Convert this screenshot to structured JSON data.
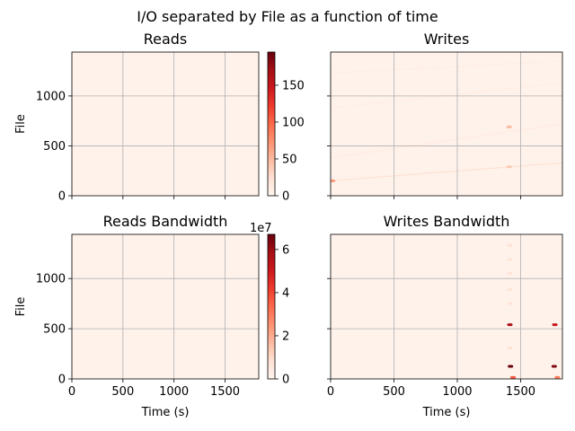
{
  "figure": {
    "title": "I/O separated by File as a function of time"
  },
  "chart_data": [
    {
      "type": "heatmap",
      "title": "Reads",
      "xlabel": "",
      "ylabel": "File",
      "xlim": [
        0,
        1830
      ],
      "ylim": [
        0,
        1440
      ],
      "xticks": [
        0,
        500,
        1000,
        1500
      ],
      "yticks": [
        0,
        500,
        1000
      ],
      "show_xticklabels": false,
      "show_yticklabels": true,
      "grid": true,
      "colormap": "Reds",
      "colorbar": {
        "ticks": [
          0,
          50,
          100,
          150
        ],
        "vmin": 0,
        "vmax": 195,
        "exponent_label": ""
      },
      "features": []
    },
    {
      "type": "heatmap",
      "title": "Writes",
      "xlabel": "",
      "ylabel": "",
      "xlim": [
        0,
        1830
      ],
      "ylim": [
        0,
        1440
      ],
      "xticks": [
        0,
        500,
        1000,
        1500
      ],
      "yticks": [
        0,
        500,
        1000
      ],
      "show_xticklabels": false,
      "show_yticklabels": false,
      "grid": true,
      "colormap": "Reds",
      "colorbar": null,
      "features": [
        {
          "kind": "streak",
          "x0": 0,
          "y0": 150,
          "x1": 1830,
          "y1": 330,
          "intensity": 0.12
        },
        {
          "kind": "streak",
          "x0": 0,
          "y0": 380,
          "x1": 1830,
          "y1": 720,
          "intensity": 0.06
        },
        {
          "kind": "streak",
          "x0": 0,
          "y0": 880,
          "x1": 1830,
          "y1": 1130,
          "intensity": 0.05
        },
        {
          "kind": "streak",
          "x0": 0,
          "y0": 1230,
          "x1": 1830,
          "y1": 1350,
          "intensity": 0.05
        },
        {
          "kind": "dot",
          "x": 15,
          "y": 150,
          "intensity": 0.35
        },
        {
          "kind": "dot",
          "x": 1410,
          "y": 690,
          "intensity": 0.25
        },
        {
          "kind": "dot",
          "x": 1410,
          "y": 290,
          "intensity": 0.2
        }
      ]
    },
    {
      "type": "heatmap",
      "title": "Reads Bandwidth",
      "xlabel": "Time (s)",
      "ylabel": "File",
      "xlim": [
        0,
        1830
      ],
      "ylim": [
        0,
        1440
      ],
      "xticks": [
        0,
        500,
        1000,
        1500
      ],
      "yticks": [
        0,
        500,
        1000
      ],
      "show_xticklabels": true,
      "show_yticklabels": true,
      "grid": true,
      "colormap": "Reds",
      "colorbar": {
        "ticks": [
          0,
          2,
          4,
          6
        ],
        "vmin": 0,
        "vmax": 6.7,
        "exponent_label": "1e7"
      },
      "features": []
    },
    {
      "type": "heatmap",
      "title": "Writes Bandwidth",
      "xlabel": "Time (s)",
      "ylabel": "",
      "xlim": [
        0,
        1830
      ],
      "ylim": [
        0,
        1440
      ],
      "xticks": [
        0,
        500,
        1000,
        1500
      ],
      "yticks": [
        0,
        500,
        1000
      ],
      "show_xticklabels": true,
      "show_yticklabels": false,
      "grid": true,
      "colormap": "Reds",
      "colorbar": null,
      "features": [
        {
          "kind": "dot",
          "x": 1415,
          "y": 540,
          "intensity": 0.85
        },
        {
          "kind": "dot",
          "x": 1770,
          "y": 540,
          "intensity": 0.75
        },
        {
          "kind": "dot",
          "x": 1420,
          "y": 125,
          "intensity": 1.0
        },
        {
          "kind": "dot",
          "x": 1765,
          "y": 125,
          "intensity": 0.95
        },
        {
          "kind": "dot",
          "x": 1415,
          "y": 1330,
          "intensity": 0.12
        },
        {
          "kind": "dot",
          "x": 1415,
          "y": 1190,
          "intensity": 0.1
        },
        {
          "kind": "dot",
          "x": 1415,
          "y": 1050,
          "intensity": 0.1
        },
        {
          "kind": "dot",
          "x": 1415,
          "y": 890,
          "intensity": 0.1
        },
        {
          "kind": "dot",
          "x": 1415,
          "y": 750,
          "intensity": 0.1
        },
        {
          "kind": "dot",
          "x": 1415,
          "y": 310,
          "intensity": 0.12
        },
        {
          "kind": "dot",
          "x": 1440,
          "y": 15,
          "intensity": 0.55
        },
        {
          "kind": "dot",
          "x": 1790,
          "y": 15,
          "intensity": 0.45
        }
      ]
    }
  ]
}
